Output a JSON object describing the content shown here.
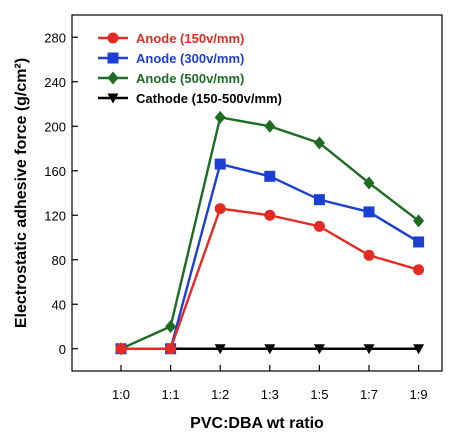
{
  "chart_data": {
    "type": "line",
    "title": "",
    "xlabel": "PVC:DBA wt ratio",
    "ylabel": "Electrostatic adhesive force (g/cm²)",
    "categories": [
      "1:0",
      "1:1",
      "1:2",
      "1:3",
      "1:5",
      "1:7",
      "1:9"
    ],
    "ylim": [
      -20,
      300
    ],
    "yticks": [
      0,
      40,
      80,
      120,
      160,
      200,
      240,
      280
    ],
    "grid": false,
    "legend_position": "top-left",
    "series": [
      {
        "name": "Anode (150v/mm)",
        "color": "#e32b24",
        "marker": "circle",
        "values": [
          0,
          0,
          126,
          120,
          110,
          84,
          71
        ]
      },
      {
        "name": "Anode (300v/mm)",
        "color": "#1c3fd4",
        "marker": "square",
        "values": [
          0,
          0,
          166,
          155,
          134,
          123,
          96
        ]
      },
      {
        "name": "Anode (500v/mm)",
        "color": "#1e6b24",
        "marker": "diamond",
        "values": [
          0,
          20,
          208,
          200,
          185,
          149,
          115
        ]
      },
      {
        "name": "Cathode (150-500v/mm)",
        "color": "#000000",
        "marker": "triangle-down",
        "values": [
          0,
          0,
          0,
          0,
          0,
          0,
          0
        ]
      }
    ]
  }
}
